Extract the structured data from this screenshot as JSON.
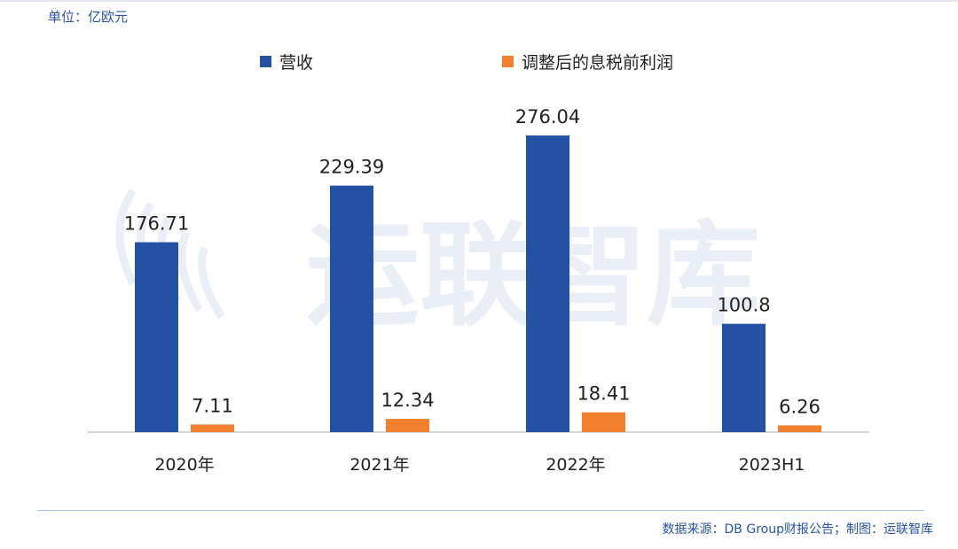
{
  "unit_label": "单位：亿欧元",
  "source": "数据来源：DB Group财报公告；制图：运联智库",
  "watermark": "运联智库",
  "colors": {
    "revenue": "#2451a4",
    "ebit": "#f07f2e",
    "axis": "#c8c8c8",
    "text": "#222222",
    "accent": "#2b54a6"
  },
  "chart_data": {
    "type": "bar",
    "categories": [
      "2020年",
      "2021年",
      "2022年",
      "2023H1"
    ],
    "series": [
      {
        "name": "营收",
        "values": [
          176.71,
          229.39,
          276.04,
          100.8
        ],
        "labels": [
          "176.71",
          "229.39",
          "276.04",
          "100.8"
        ]
      },
      {
        "name": "调整后的息税前利润",
        "values": [
          7.11,
          12.34,
          18.41,
          6.26
        ],
        "labels": [
          "7.11",
          "12.34",
          "18.41",
          "6.26"
        ]
      }
    ],
    "ylim": [
      0,
      276.04
    ],
    "legend": "top",
    "grid": false
  }
}
